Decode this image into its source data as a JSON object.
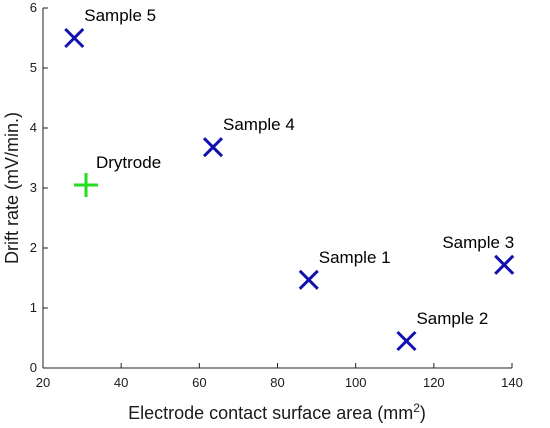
{
  "chart_data": {
    "type": "scatter",
    "title": "",
    "xlabel": "Electrode contact surface area (mm",
    "xlabel_sup": "2",
    "xlabel_suffix": ")",
    "ylabel": "Drift rate (mV/min.)",
    "xlim": [
      20,
      140
    ],
    "ylim": [
      0,
      6
    ],
    "xticks": [
      20,
      40,
      60,
      80,
      100,
      120,
      140
    ],
    "yticks": [
      0,
      1,
      2,
      3,
      4,
      5,
      6
    ],
    "grid": false,
    "legend": "none",
    "series": [
      {
        "marker": "x",
        "color": "#1010b0",
        "points": [
          {
            "label": "Sample 1",
            "x": 88,
            "y": 1.47
          },
          {
            "label": "Sample 2",
            "x": 113,
            "y": 0.45
          },
          {
            "label": "Sample 3",
            "x": 138,
            "y": 1.72
          },
          {
            "label": "Sample 4",
            "x": 63.5,
            "y": 3.68
          },
          {
            "label": "Sample 5",
            "x": 28,
            "y": 5.5
          }
        ]
      },
      {
        "marker": "+",
        "color": "#22dd22",
        "points": [
          {
            "label": "Drytrode",
            "x": 31,
            "y": 3.05
          }
        ]
      }
    ]
  }
}
